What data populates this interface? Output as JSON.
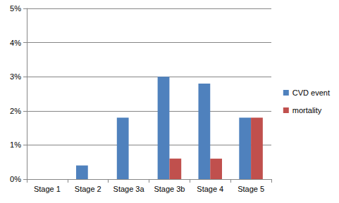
{
  "chart_data": {
    "type": "bar",
    "categories": [
      "Stage 1",
      "Stage 2",
      "Stage 3a",
      "Stage 3b",
      "Stage 4",
      "Stage 5"
    ],
    "series": [
      {
        "name": "CVD event",
        "color": "#4F81BD",
        "values": [
          0,
          0.4,
          1.8,
          3.0,
          2.8,
          1.8
        ]
      },
      {
        "name": "mortality",
        "color": "#C0504D",
        "values": [
          0,
          0,
          0,
          0.6,
          0.6,
          1.8
        ]
      }
    ],
    "ylim": [
      0,
      5
    ],
    "yticks": [
      {
        "value": 0,
        "label": "0%"
      },
      {
        "value": 1,
        "label": "1%"
      },
      {
        "value": 2,
        "label": "2%"
      },
      {
        "value": 3,
        "label": "3%"
      },
      {
        "value": 4,
        "label": "4%"
      },
      {
        "value": 5,
        "label": "5%"
      }
    ],
    "grid": true,
    "legend": "right"
  }
}
